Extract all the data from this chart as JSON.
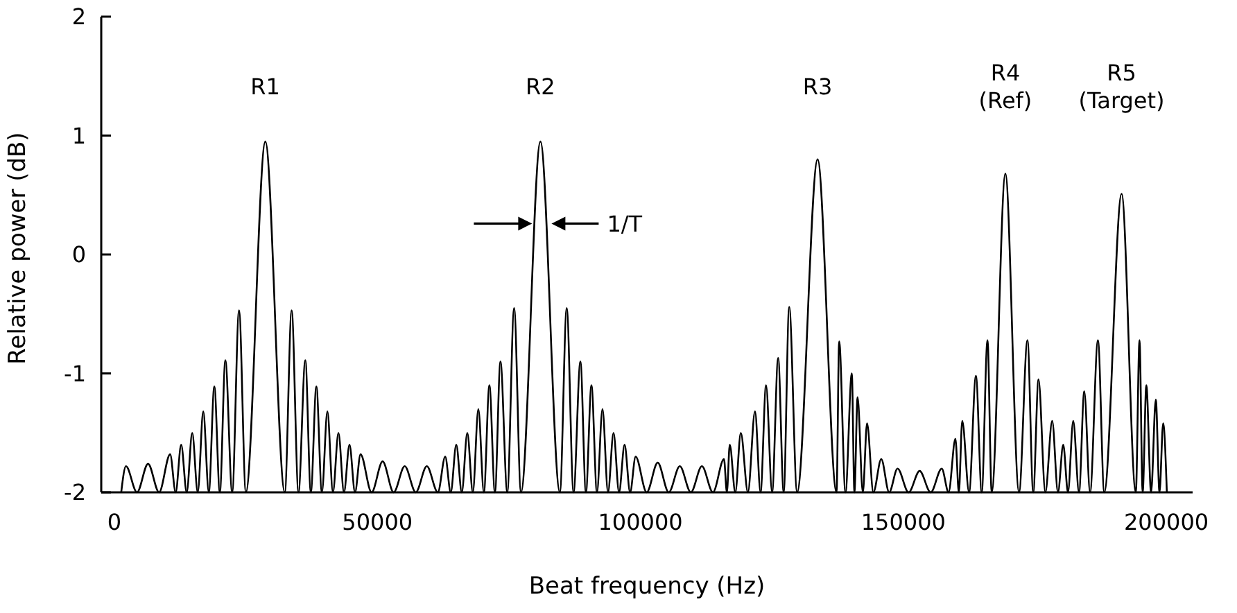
{
  "chart_data": {
    "type": "line",
    "xlabel": "Beat frequency (Hz)",
    "ylabel": "Relative power (dB)",
    "xlim": [
      -2500,
      205000
    ],
    "ylim": [
      -2,
      2
    ],
    "xticks": [
      0,
      50000,
      100000,
      150000,
      200000
    ],
    "yticks": [
      -2,
      -1,
      0,
      1,
      2
    ],
    "grid": false,
    "marker": "none",
    "line_style": "solid",
    "series": [
      {
        "color": "#000000",
        "x": [
          1300,
          2200,
          4300,
          6400,
          8500,
          10600,
          11650,
          12700,
          13750,
          14800,
          15850,
          16900,
          17950,
          19000,
          20050,
          21100,
          22400,
          23700,
          25000,
          28700,
          32400,
          33700,
          35000,
          36300,
          37350,
          38400,
          39450,
          40500,
          41550,
          42600,
          43650,
          44700,
          45750,
          46800,
          48900,
          51000,
          53100,
          55200,
          57300,
          59400,
          61500,
          62900,
          63950,
          65000,
          66050,
          67100,
          68150,
          69200,
          70250,
          71300,
          72350,
          73400,
          74700,
          76000,
          77300,
          81000,
          84700,
          86000,
          87300,
          88600,
          89650,
          90700,
          91750,
          92800,
          93850,
          94900,
          95950,
          97000,
          98050,
          99100,
          101200,
          103300,
          105400,
          107500,
          109600,
          111700,
          113800,
          115900,
          116450,
          117000,
          118050,
          119100,
          120450,
          121800,
          122850,
          123900,
          125050,
          126200,
          127250,
          128300,
          129800,
          133700,
          137300,
          137800,
          139000,
          140200,
          140700,
          141300,
          142300,
          143100,
          144300,
          145800,
          147300,
          148900,
          151000,
          153100,
          155200,
          157300,
          158600,
          159900,
          160550,
          161200,
          162500,
          163800,
          164900,
          166000,
          166800,
          169400,
          172000,
          173600,
          174700,
          175700,
          177000,
          178300,
          179400,
          180400,
          181300,
          182300,
          183400,
          184400,
          185500,
          187000,
          188200,
          191500,
          194200,
          194900,
          195500,
          196200,
          197100,
          198000,
          198700,
          199400,
          200100
        ],
        "values": [
          -2,
          -1.78,
          -2,
          -1.76,
          -2,
          -1.68,
          -2,
          -1.6,
          -2,
          -1.5,
          -2,
          -1.32,
          -2,
          -1.11,
          -2,
          -0.89,
          -2,
          -0.47,
          -2,
          0.95,
          -2,
          -0.47,
          -2,
          -0.89,
          -2,
          -1.11,
          -2,
          -1.32,
          -2,
          -1.5,
          -2,
          -1.6,
          -2,
          -1.68,
          -2,
          -1.74,
          -2,
          -1.78,
          -2,
          -1.78,
          -2,
          -1.7,
          -2,
          -1.6,
          -2,
          -1.5,
          -2,
          -1.3,
          -2,
          -1.1,
          -2,
          -0.9,
          -2,
          -0.45,
          -2,
          0.95,
          -2,
          -0.45,
          -2,
          -0.9,
          -2,
          -1.1,
          -2,
          -1.3,
          -2,
          -1.5,
          -2,
          -1.6,
          -2,
          -1.7,
          -2,
          -1.75,
          -2,
          -1.78,
          -2,
          -1.78,
          -2,
          -1.72,
          -2,
          -1.6,
          -2,
          -1.5,
          -2,
          -1.32,
          -2,
          -1.1,
          -2,
          -0.87,
          -2,
          -0.44,
          -2,
          0.8,
          -2,
          -0.73,
          -2,
          -1.0,
          -2,
          -1.2,
          -2,
          -1.42,
          -2,
          -1.72,
          -2,
          -1.8,
          -2,
          -1.82,
          -2,
          -1.8,
          -2,
          -1.55,
          -2,
          -1.4,
          -2,
          -1.02,
          -2,
          -0.72,
          -2,
          0.68,
          -2,
          -0.72,
          -2,
          -1.05,
          -2,
          -1.4,
          -2,
          -1.6,
          -2,
          -1.4,
          -2,
          -1.15,
          -2,
          -0.72,
          -2,
          0.51,
          -2,
          -0.72,
          -2,
          -1.1,
          -2,
          -1.22,
          -2,
          -1.42,
          -2
        ]
      }
    ],
    "annotations": [
      "R1",
      "R2",
      "R3",
      "R4\n(Ref)",
      "R5\n(Target)",
      {
        "text": "1/T",
        "x": 81000,
        "y": 0.26
      }
    ]
  }
}
